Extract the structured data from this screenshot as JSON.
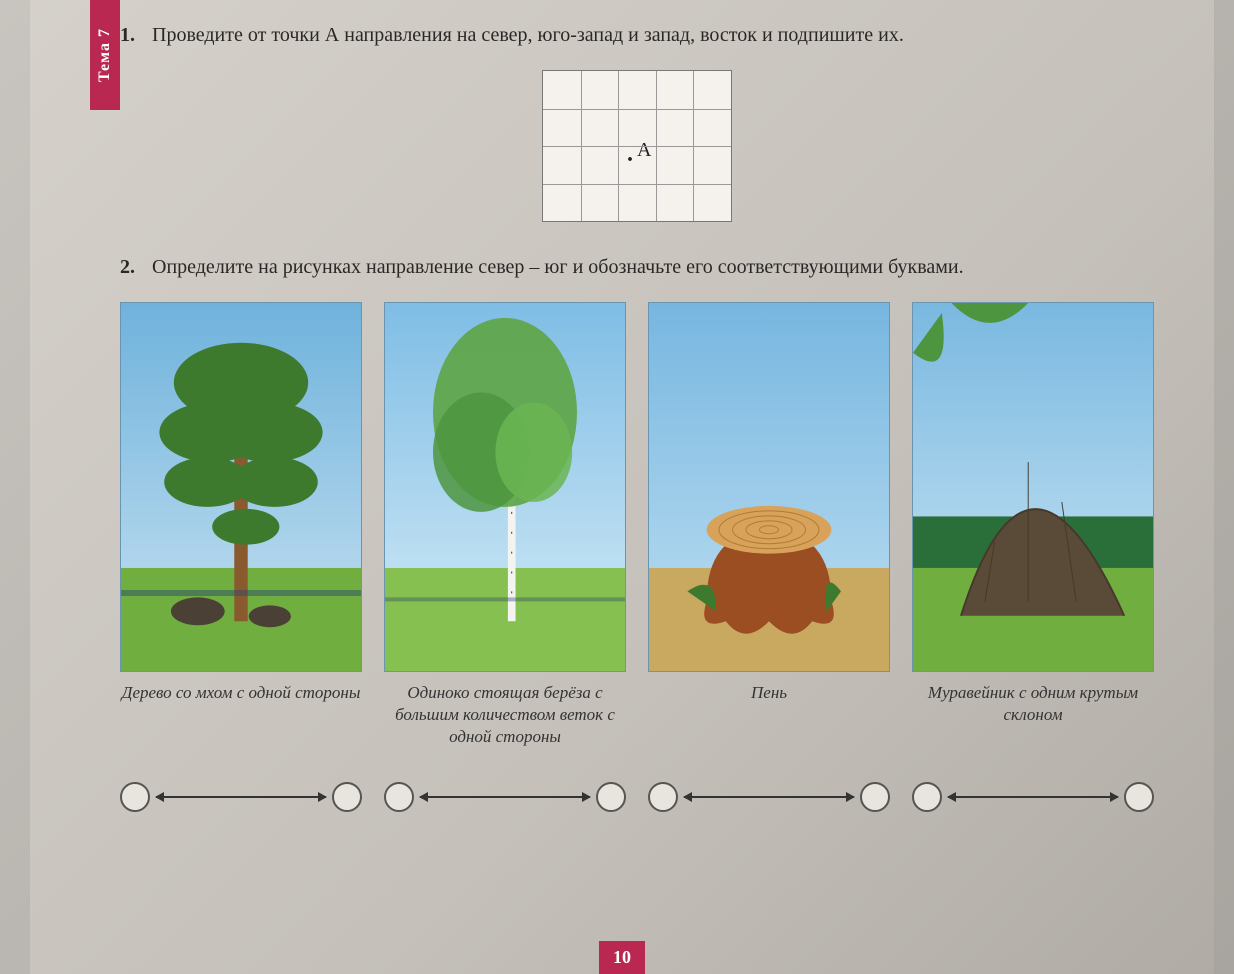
{
  "theme_tab": "Тема 7",
  "page_number": "10",
  "task1": {
    "num": "1.",
    "text": "Проведите от точки А направления на север, юго-запад и запад, восток и подпишите их."
  },
  "grid": {
    "cols": 5,
    "rows": 4,
    "point_label": "А"
  },
  "task2": {
    "num": "2.",
    "text": "Определите на рисунках направление север – юг и обозначьте его соответствующими буквами."
  },
  "cards": [
    {
      "caption": "Дерево со мхом с одной стороны",
      "scene": "pine",
      "ground_color": "#6fae3f",
      "sky_top": "#6fb2dc",
      "sky_bot": "#c9e3f2"
    },
    {
      "caption": "Одиноко стоящая берёза с большим количеством веток с одной стороны",
      "scene": "birch",
      "ground_color": "#85c050",
      "sky_top": "#7fbde5",
      "sky_bot": "#d5ecf7"
    },
    {
      "caption": "Пень",
      "scene": "stump",
      "ground_color": "#c9a85f",
      "sky_top": "#77b6e0",
      "sky_bot": "#bfe0f2"
    },
    {
      "caption": "Муравейник с одним крутым склоном",
      "scene": "anthill",
      "ground_color": "#6fae3f",
      "sky_top": "#7ab8e0",
      "sky_bot": "#cde8f5"
    }
  ],
  "colors": {
    "accent": "#b82850",
    "text": "#2a2826",
    "border": "#6a95b0"
  }
}
